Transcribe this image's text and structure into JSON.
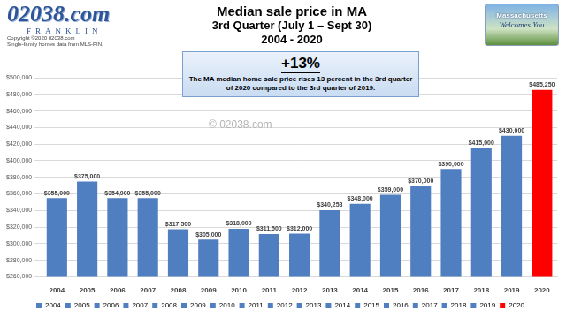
{
  "chart_data": {
    "type": "bar",
    "title": "Median sale price in MA",
    "subtitle": [
      "3rd Quarter (July 1 – Sept 30)",
      "2004 - 2020"
    ],
    "annotations": [
      "+13%",
      "The MA median home sale price rises 13 percent in the 3rd quarter of 2020 compared to the 3rd quarter of 2019.",
      "© 02038.com"
    ],
    "categories": [
      "2004",
      "2005",
      "2006",
      "2007",
      "2008",
      "2009",
      "2010",
      "2011",
      "2012",
      "2013",
      "2014",
      "2015",
      "2016",
      "2017",
      "2018",
      "2019",
      "2020"
    ],
    "values": [
      355000,
      375000,
      354900,
      355000,
      317500,
      305000,
      318000,
      311500,
      312000,
      340258,
      348000,
      359000,
      370000,
      390000,
      415000,
      430000,
      485250
    ],
    "value_labels": [
      "$355,000",
      "$375,000",
      "$354,900",
      "$355,000",
      "$317,500",
      "$305,000",
      "$318,000",
      "$311,500",
      "$312,000",
      "$340,258",
      "$348,000",
      "$359,000",
      "$370,000",
      "$390,000",
      "$415,000",
      "$430,000",
      "$485,250"
    ],
    "colors": [
      "#4f7fc0",
      "#4f7fc0",
      "#4f7fc0",
      "#4f7fc0",
      "#4f7fc0",
      "#4f7fc0",
      "#4f7fc0",
      "#4f7fc0",
      "#4f7fc0",
      "#4f7fc0",
      "#4f7fc0",
      "#4f7fc0",
      "#4f7fc0",
      "#4f7fc0",
      "#4f7fc0",
      "#4f7fc0",
      "#ff0000"
    ],
    "ylim": [
      260000,
      500000
    ],
    "yticks": [
      {
        "value": 260000,
        "label": "$260,000"
      },
      {
        "value": 280000,
        "label": "$280,000"
      },
      {
        "value": 300000,
        "label": "$300,000"
      },
      {
        "value": 320000,
        "label": "$320,000"
      },
      {
        "value": 340000,
        "label": "$340,000"
      },
      {
        "value": 360000,
        "label": "$360,000"
      },
      {
        "value": 380000,
        "label": "$380,000"
      },
      {
        "value": 400000,
        "label": "$400,000"
      },
      {
        "value": 420000,
        "label": "$420,000"
      },
      {
        "value": 440000,
        "label": "$440,000"
      },
      {
        "value": 460000,
        "label": "$460,000"
      },
      {
        "value": 480000,
        "label": "$480,000"
      },
      {
        "value": 500000,
        "label": "$500,000"
      }
    ],
    "grid": true,
    "legend": "bottom",
    "data_labels": true
  },
  "header": {
    "logo": [
      "02038.com",
      "FRANKLIN",
      "Copyright ©2020 02038.com",
      "Single-family homes data from MLS-PIN."
    ],
    "sign": [
      "Massachusetts",
      "Welcomes You"
    ]
  }
}
